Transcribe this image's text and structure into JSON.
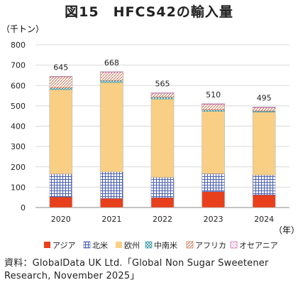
{
  "title": "図15　HFCS42の輸入量",
  "source": "資料：GlobalData UK Ltd.「Global Non Sugar Sweetener Research, November 2025」",
  "colors": {
    "asia": "#e8401c",
    "north_america": "#4a5fb0",
    "europe": "#f9cf86",
    "central_south_america": "#2a8fa0",
    "africa": "#c05a30",
    "oceania": "#c04aa8"
  },
  "chart_data": {
    "type": "bar",
    "stacked": true,
    "categories": [
      "2020",
      "2021",
      "2022",
      "2023",
      "2024"
    ],
    "series": [
      {
        "key": "asia",
        "name": "アジア",
        "values": [
          52,
          45,
          48,
          78,
          62
        ]
      },
      {
        "key": "north_america",
        "name": "北米",
        "values": [
          113,
          130,
          100,
          88,
          97
        ]
      },
      {
        "key": "europe",
        "name": "欧州",
        "values": [
          415,
          440,
          386,
          307,
          310
        ]
      },
      {
        "key": "central_south_america",
        "name": "中南米",
        "values": [
          8,
          10,
          9,
          7,
          6
        ]
      },
      {
        "key": "africa",
        "name": "アフリカ",
        "values": [
          55,
          40,
          19,
          27,
          16
        ]
      },
      {
        "key": "oceania",
        "name": "オセアニア",
        "values": [
          2,
          3,
          3,
          3,
          4
        ]
      }
    ],
    "totals": [
      645,
      668,
      565,
      510,
      495
    ],
    "ylabel": "（千トン）",
    "xlabel": "（年）",
    "ylim": [
      0,
      800
    ],
    "yticks": [
      0,
      100,
      200,
      300,
      400,
      500,
      600,
      700,
      800
    ],
    "grid": true,
    "legend": "bottom"
  }
}
